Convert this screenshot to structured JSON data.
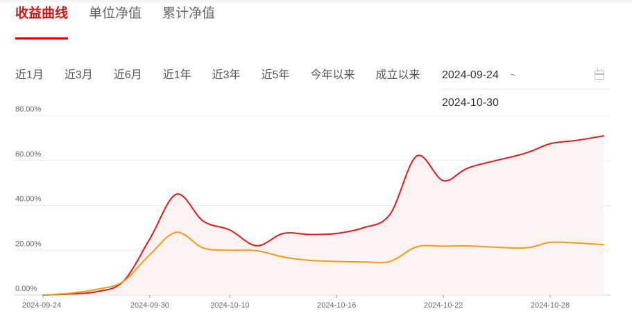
{
  "tabs": [
    {
      "label": "收益曲线",
      "active": true
    },
    {
      "label": "单位净值",
      "active": false
    },
    {
      "label": "累计净值",
      "active": false
    }
  ],
  "ranges": [
    "近1月",
    "近3月",
    "近6月",
    "近1年",
    "近3年",
    "近5年",
    "今年以来",
    "成立以来"
  ],
  "date_range": {
    "start": "2024-09-24",
    "separator": "~",
    "end": "2024-10-30"
  },
  "colors": {
    "accent": "#c91818",
    "series_red": "#e01a1a",
    "series_orange": "#f39a1a",
    "area_fill": "#fdf2f2"
  },
  "chart_data": {
    "type": "line",
    "x_ticks": [
      "2024-09-24",
      "2024-09-30",
      "2024-10-10",
      "2024-10-16",
      "2024-10-22",
      "2024-10-28"
    ],
    "y_ticks": [
      "0.00%",
      "20.00%",
      "40.00%",
      "60.00%",
      "80.00%"
    ],
    "ylim": [
      0,
      80
    ],
    "grid": true,
    "series": [
      {
        "color": "#e01a1a",
        "area": true,
        "points": [
          [
            "2024-09-24",
            0
          ],
          [
            "2024-09-25",
            0.5
          ],
          [
            "2024-09-26",
            1.5
          ],
          [
            "2024-09-27",
            6
          ],
          [
            "2024-09-30",
            25
          ],
          [
            "2024-10-08",
            45
          ],
          [
            "2024-10-09",
            33
          ],
          [
            "2024-10-10",
            29
          ],
          [
            "2024-10-11",
            22
          ],
          [
            "2024-10-14",
            27.5
          ],
          [
            "2024-10-15",
            27
          ],
          [
            "2024-10-16",
            27.5
          ],
          [
            "2024-10-17",
            30
          ],
          [
            "2024-10-18",
            36
          ],
          [
            "2024-10-21",
            62
          ],
          [
            "2024-10-22",
            51
          ],
          [
            "2024-10-23",
            57
          ],
          [
            "2024-10-25",
            63
          ],
          [
            "2024-10-28",
            67.5
          ],
          [
            "2024-10-29",
            69
          ],
          [
            "2024-10-30",
            71
          ]
        ]
      },
      {
        "color": "#f39a1a",
        "area": false,
        "points": [
          [
            "2024-09-24",
            0
          ],
          [
            "2024-09-25",
            0.8
          ],
          [
            "2024-09-26",
            2.5
          ],
          [
            "2024-09-27",
            6
          ],
          [
            "2024-09-30",
            18
          ],
          [
            "2024-10-08",
            28
          ],
          [
            "2024-10-09",
            21
          ],
          [
            "2024-10-10",
            20
          ],
          [
            "2024-10-11",
            19.8
          ],
          [
            "2024-10-14",
            17
          ],
          [
            "2024-10-15",
            15.5
          ],
          [
            "2024-10-16",
            15
          ],
          [
            "2024-10-17",
            14.8
          ],
          [
            "2024-10-18",
            15
          ],
          [
            "2024-10-21",
            21.5
          ],
          [
            "2024-10-22",
            21.8
          ],
          [
            "2024-10-23",
            21.9
          ],
          [
            "2024-10-25",
            21
          ],
          [
            "2024-10-28",
            23.5
          ],
          [
            "2024-10-29",
            23.2
          ],
          [
            "2024-10-30",
            22.5
          ]
        ]
      }
    ]
  }
}
